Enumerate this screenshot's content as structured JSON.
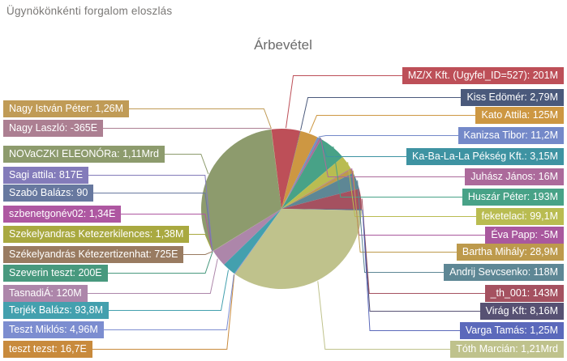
{
  "page": {
    "title": "Ügynökönkénti forgalom eloszlás"
  },
  "chart": {
    "title": "Árbevétel"
  },
  "chart_data": {
    "type": "pie",
    "title": "Árbevétel",
    "direction": "clockwise",
    "start_angle_deg": -7.2,
    "labels_style": "callout",
    "slices": [
      {
        "label": "MZ/X Kft. (Ugyfel_ID=527): 201M",
        "value_millions": 201,
        "color": "#bd4f58",
        "side": "right"
      },
      {
        "label": "Kiss Edömér: 2,79M",
        "value_millions": 2.79,
        "color": "#4a597b",
        "side": "right"
      },
      {
        "label": "Kato Attila: 125M",
        "value_millions": 125,
        "color": "#cd9742",
        "side": "right"
      },
      {
        "label": "Kanizsa Tibor: 11,2M",
        "value_millions": 11.2,
        "color": "#7489c9",
        "side": "right"
      },
      {
        "label": "Ka-Ba-La-La Pékség Kft.: 3,15M",
        "value_millions": 3.15,
        "color": "#3e93a2",
        "side": "right"
      },
      {
        "label": "Juhász János: 16M",
        "value_millions": 16,
        "color": "#ac6a9b",
        "side": "right"
      },
      {
        "label": "Huszár Péter: 193M",
        "value_millions": 193,
        "color": "#48a287",
        "side": "right"
      },
      {
        "label": "feketelaci: 99,1M",
        "value_millions": 99.1,
        "color": "#b9bc51",
        "side": "right"
      },
      {
        "label": "Éva Papp: -5M",
        "value_millions": -5,
        "color": "#a9589e",
        "side": "right"
      },
      {
        "label": "Bartha Mihály: 28,9M",
        "value_millions": 28.9,
        "color": "#bd9a4c",
        "side": "right"
      },
      {
        "label": "Andrij Sevcsenko: 118M",
        "value_millions": 118,
        "color": "#5e8795",
        "side": "right"
      },
      {
        "label": "_th_001: 143M",
        "value_millions": 143,
        "color": "#a55160",
        "side": "right"
      },
      {
        "label": "Virág Kft: 8,16M",
        "value_millions": 8.16,
        "color": "#575173",
        "side": "right"
      },
      {
        "label": "Varga Tamás: 1,25M",
        "value_millions": 1.25,
        "color": "#5b69bb",
        "side": "right"
      },
      {
        "label": "Tóth Marcián: 1,21Mrd",
        "value_millions": 1210,
        "color": "#bfc28c",
        "side": "right"
      },
      {
        "label": "teszt tezst: 16,7E",
        "value_millions": 0.0167,
        "color": "#c88a3c",
        "side": "left"
      },
      {
        "label": "Teszt Miklós: 4,96M",
        "value_millions": 4.96,
        "color": "#7c8dd0",
        "side": "left"
      },
      {
        "label": "Terjék Balázs: 93,8M",
        "value_millions": 93.8,
        "color": "#43a0ae",
        "side": "left"
      },
      {
        "label": "TasnadiÁ: 120M",
        "value_millions": 120,
        "color": "#ad86aa",
        "side": "left"
      },
      {
        "label": "Szeverin teszt: 200E",
        "value_millions": 0.2,
        "color": "#48997e",
        "side": "left"
      },
      {
        "label": "Székelyandrás Kétezertizenhat: 725E",
        "value_millions": 0.725,
        "color": "#997b61",
        "side": "left"
      },
      {
        "label": "Szekelyandras Ketezerkilences: 1,38M",
        "value_millions": 1.38,
        "color": "#a9a940",
        "side": "left"
      },
      {
        "label": "szbenetgonév02: 1,34E",
        "value_millions": 0.00134,
        "color": "#ae57a1",
        "side": "left"
      },
      {
        "label": "Szabó Balázs: 90",
        "value_millions": 9e-05,
        "color": "#67789f",
        "side": "left"
      },
      {
        "label": "Sagi attila: 817E",
        "value_millions": 0.817,
        "color": "#837bba",
        "side": "left"
      },
      {
        "label": "NOVaCZKI ELEONÓRa: 1,11Mrd",
        "value_millions": 1110,
        "color": "#8d9b6d",
        "side": "left"
      },
      {
        "label": "Nagy Laszló: -365E",
        "value_millions": -0.365,
        "color": "#ac7f92",
        "side": "left"
      },
      {
        "label": "Nagy István Péter: 1,26M",
        "value_millions": 1.26,
        "color": "#c09b56",
        "side": "left"
      }
    ]
  }
}
